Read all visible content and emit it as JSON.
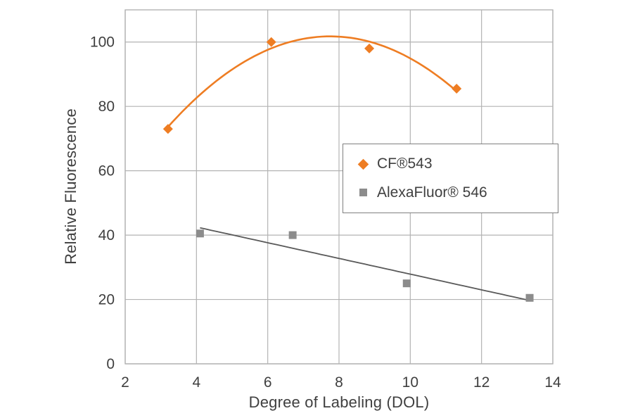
{
  "chart_data": {
    "type": "scatter",
    "title": "",
    "xlabel": "Degree of Labeling (DOL)",
    "ylabel": "Relative Fluorescence",
    "xlim": [
      2,
      14
    ],
    "ylim": [
      0,
      110
    ],
    "xticks": [
      2,
      4,
      6,
      8,
      10,
      12,
      14
    ],
    "yticks": [
      0,
      20,
      40,
      60,
      80,
      100
    ],
    "grid": true,
    "legend_position": "middle-right",
    "colors": {
      "background": "#ffffff",
      "grid": "#b3b3b3",
      "text": "#3f3f3f",
      "legend_border": "#7f7f7f"
    },
    "series": [
      {
        "name": "CF®543",
        "marker": "diamond",
        "color": "#ee7d23",
        "line_color": "#ee7d23",
        "trendline": "quadratic",
        "points": [
          [
            3.2,
            73
          ],
          [
            6.1,
            100
          ],
          [
            8.85,
            98
          ],
          [
            11.3,
            85.5
          ]
        ]
      },
      {
        "name": "AlexaFluor® 546",
        "marker": "square",
        "color": "#8c8c8c",
        "line_color": "#595959",
        "trendline": "linear",
        "points": [
          [
            4.1,
            40.5
          ],
          [
            6.7,
            40
          ],
          [
            9.9,
            25
          ],
          [
            13.35,
            20.5
          ]
        ]
      }
    ]
  }
}
